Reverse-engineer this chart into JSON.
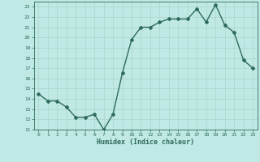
{
  "x": [
    0,
    1,
    2,
    3,
    4,
    5,
    6,
    7,
    8,
    9,
    10,
    11,
    12,
    13,
    14,
    15,
    16,
    17,
    18,
    19,
    20,
    21,
    22,
    23
  ],
  "y": [
    14.5,
    13.8,
    13.8,
    13.2,
    12.2,
    12.2,
    12.5,
    11.0,
    12.5,
    16.5,
    19.8,
    21.0,
    21.0,
    21.5,
    21.8,
    21.8,
    21.8,
    22.8,
    21.5,
    23.2,
    21.2,
    20.5,
    17.8,
    17.0
  ],
  "xlabel": "Humidex (Indice chaleur)",
  "xlim": [
    -0.5,
    23.5
  ],
  "ylim": [
    11,
    23.5
  ],
  "yticks": [
    11,
    12,
    13,
    14,
    15,
    16,
    17,
    18,
    19,
    20,
    21,
    22,
    23
  ],
  "xticks": [
    0,
    1,
    2,
    3,
    4,
    5,
    6,
    7,
    8,
    9,
    10,
    11,
    12,
    13,
    14,
    15,
    16,
    17,
    18,
    19,
    20,
    21,
    22,
    23
  ],
  "line_color": "#2e6b5e",
  "bg_color": "#c0e8e4",
  "grid_color": "#aad4ce",
  "tick_label_color": "#2e6b5e",
  "xlabel_color": "#2e6b5e",
  "marker": "D",
  "marker_size": 2.0,
  "line_width": 1.0
}
